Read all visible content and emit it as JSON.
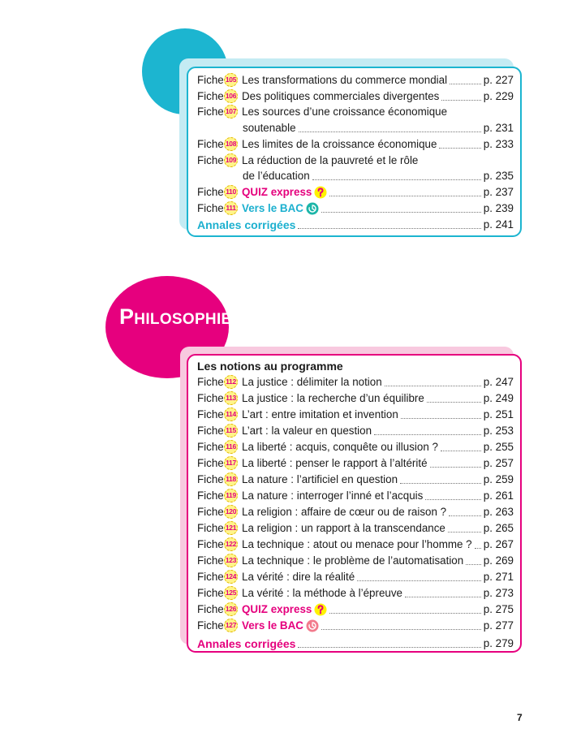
{
  "sections": [
    {
      "entries": [
        {
          "label": "Fiche",
          "number": "105",
          "title": [
            "Les transformations du commerce mondial"
          ],
          "page": "p. 227"
        },
        {
          "label": "Fiche",
          "number": "106",
          "title": [
            "Des politiques commerciales divergentes"
          ],
          "page": "p. 229"
        },
        {
          "label": "Fiche",
          "number": "107",
          "title": [
            "Les sources d’une croissance économique",
            "soutenable"
          ],
          "page": "p. 231"
        },
        {
          "label": "Fiche",
          "number": "108",
          "title": [
            "Les limites de la croissance économique"
          ],
          "page": "p. 233"
        },
        {
          "label": "Fiche",
          "number": "109",
          "title": [
            "La réduction de la pauvreté et le rôle",
            "de l’éducation"
          ],
          "page": "p. 235"
        },
        {
          "label": "Fiche",
          "number": "110",
          "title": [
            "QUIZ express"
          ],
          "page": "p. 237"
        },
        {
          "label": "Fiche",
          "number": "111",
          "title": [
            "Vers le BAC"
          ],
          "page": "p. 239"
        }
      ],
      "annales": {
        "title": "Annales corrigées",
        "page": "p. 241"
      }
    },
    {
      "title": "Philosophie",
      "heading": "Les notions au programme",
      "entries": [
        {
          "label": "Fiche",
          "number": "112",
          "title": [
            "La justice : délimiter la notion"
          ],
          "page": "p. 247"
        },
        {
          "label": "Fiche",
          "number": "113",
          "title": [
            "La justice : la recherche d’un équilibre"
          ],
          "page": "p. 249"
        },
        {
          "label": "Fiche",
          "number": "114",
          "title": [
            "L’art : entre imitation et invention"
          ],
          "page": "p. 251"
        },
        {
          "label": "Fiche",
          "number": "115",
          "title": [
            "L’art : la valeur en question"
          ],
          "page": "p. 253"
        },
        {
          "label": "Fiche",
          "number": "116",
          "title": [
            "La liberté : acquis, conquête ou illusion ?"
          ],
          "page": "p. 255"
        },
        {
          "label": "Fiche",
          "number": "117",
          "title": [
            "La liberté : penser le rapport à l’altérité"
          ],
          "page": "p. 257"
        },
        {
          "label": "Fiche",
          "number": "118",
          "title": [
            "La nature : l’artificiel en question"
          ],
          "page": "p. 259"
        },
        {
          "label": "Fiche",
          "number": "119",
          "title": [
            "La nature : interroger l’inné et l’acquis"
          ],
          "page": "p. 261"
        },
        {
          "label": "Fiche",
          "number": "120",
          "title": [
            "La religion : affaire de cœur ou de raison ?"
          ],
          "page": "p. 263"
        },
        {
          "label": "Fiche",
          "number": "121",
          "title": [
            "La religion : un rapport à la transcendance"
          ],
          "page": "p. 265"
        },
        {
          "label": "Fiche",
          "number": "122",
          "title": [
            "La technique : atout ou menace pour l’homme ?"
          ],
          "page": "p. 267"
        },
        {
          "label": "Fiche",
          "number": "123",
          "title": [
            "La technique : le problème de l’automatisation"
          ],
          "page": "p. 269"
        },
        {
          "label": "Fiche",
          "number": "124",
          "title": [
            "La vérité : dire la réalité"
          ],
          "page": "p. 271"
        },
        {
          "label": "Fiche",
          "number": "125",
          "title": [
            "La vérité : la méthode à l’épreuve"
          ],
          "page": "p. 273"
        },
        {
          "label": "Fiche",
          "number": "126",
          "title": [
            "QUIZ express"
          ],
          "page": "p. 275"
        },
        {
          "label": "Fiche",
          "number": "127",
          "title": [
            "Vers le BAC"
          ],
          "page": "p. 277"
        }
      ],
      "annales": {
        "title": "Annales corrigées",
        "page": "p. 279"
      }
    }
  ],
  "page_number": "7"
}
